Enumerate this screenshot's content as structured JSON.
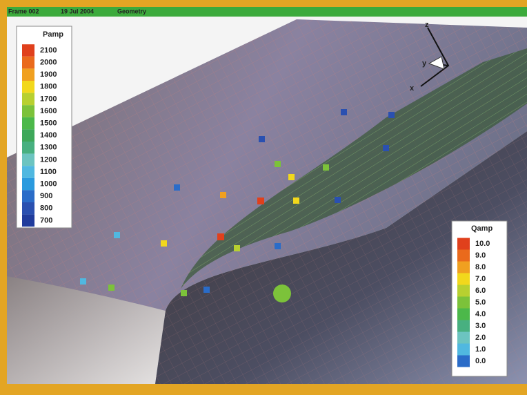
{
  "header": {
    "frame": "Frame 002",
    "date": "19 Jul 2004",
    "view": "Geometry"
  },
  "axes": {
    "z": "z",
    "y": "y",
    "x": "x"
  },
  "pamp_legend": {
    "title": "Pamp",
    "levels": [
      "2100",
      "2000",
      "1900",
      "1800",
      "1700",
      "1600",
      "1500",
      "1400",
      "1300",
      "1200",
      "1100",
      "1000",
      "900",
      "800",
      "700"
    ],
    "colors": [
      "#e0401c",
      "#ea6a1c",
      "#f0a020",
      "#f2d81c",
      "#b8d030",
      "#7cc23a",
      "#4cb84a",
      "#3ea85a",
      "#48b080",
      "#6cc4c0",
      "#50b8e0",
      "#2a9ade",
      "#2a6cc8",
      "#2a50b0",
      "#203c9c"
    ]
  },
  "qamp_legend": {
    "title": "Qamp",
    "levels": [
      "10.0",
      "9.0",
      "8.0",
      "7.0",
      "6.0",
      "5.0",
      "4.0",
      "3.0",
      "2.0",
      "1.0",
      "0.0"
    ],
    "colors": [
      "#e0401c",
      "#ea6a1c",
      "#f0a020",
      "#f2d81c",
      "#b8d030",
      "#7cc23a",
      "#4cb84a",
      "#48b080",
      "#6cc4c0",
      "#50b8e0",
      "#2a6cc8"
    ]
  }
}
